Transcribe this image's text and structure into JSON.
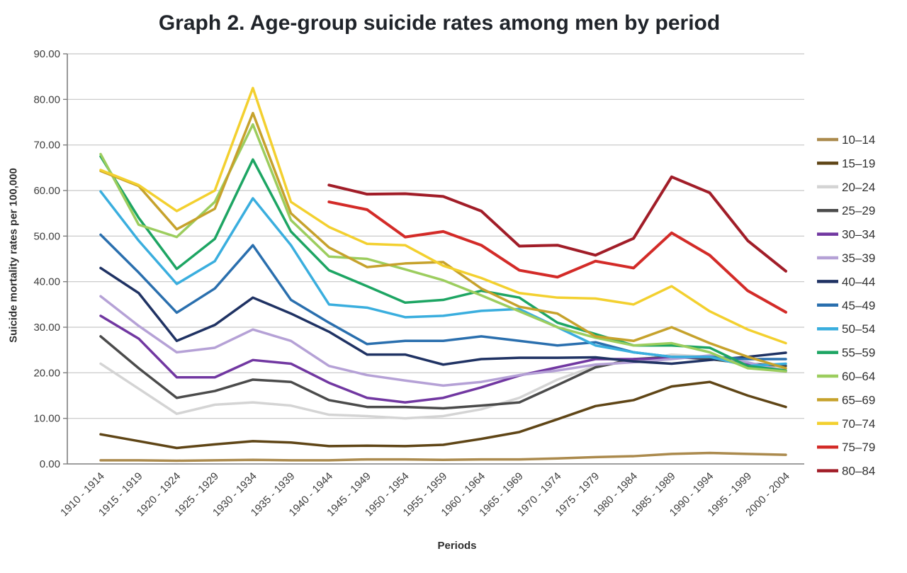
{
  "chart": {
    "title": "Graph 2. Age-group suicide rates among men by period",
    "xlabel": "Periods",
    "ylabel": "Suicide mortality rates per 100,000"
  },
  "chart_data": {
    "type": "line",
    "title": "Graph 2. Age-group suicide rates among men by period",
    "xlabel": "Periods",
    "ylabel": "Suicide mortality rates per 100,000",
    "ylim": [
      0,
      90
    ],
    "ytick_step": 10,
    "ytick_decimals": 2,
    "grid": "horizontal",
    "legend_position": "right",
    "axis_color": "#7f7f7f",
    "grid_color": "#c6c6c6",
    "tick_label_color": "#3d3d3d",
    "legend_label_color": "#303030",
    "categories": [
      "1910 - 1914",
      "1915 - 1919",
      "1920 - 1924",
      "1925 - 1929",
      "1930 - 1934",
      "1935 - 1939",
      "1940 - 1944",
      "1945 - 1949",
      "1950 - 1954",
      "1955 - 1959",
      "1960 - 1964",
      "1965 - 1969",
      "1970 - 1974",
      "1975 - 1979",
      "1980 - 1984",
      "1985 - 1989",
      "1990 - 1994",
      "1995 - 1999",
      "2000 - 2004"
    ],
    "series": [
      {
        "name": "10–14",
        "color": "#ab8a4d",
        "width": 3.5,
        "values": [
          0.8,
          0.8,
          0.7,
          0.8,
          0.9,
          0.8,
          0.8,
          1.0,
          1.0,
          0.9,
          1.0,
          1.0,
          1.2,
          1.5,
          1.7,
          2.2,
          2.4,
          2.2,
          2.0
        ]
      },
      {
        "name": "15–19",
        "color": "#5f4516",
        "width": 3.5,
        "values": [
          6.5,
          5.0,
          3.5,
          4.3,
          5.0,
          4.7,
          3.9,
          4.0,
          3.9,
          4.2,
          5.5,
          7.0,
          9.8,
          12.7,
          14.0,
          17.0,
          18.0,
          15.0,
          12.5
        ]
      },
      {
        "name": "20–24",
        "color": "#d4d4d4",
        "width": 3.5,
        "values": [
          22.0,
          16.5,
          11.0,
          13.0,
          13.5,
          12.8,
          10.8,
          10.5,
          10.0,
          10.5,
          12.0,
          14.5,
          18.5,
          21.5,
          22.5,
          24.0,
          23.5,
          21.5,
          21.0
        ]
      },
      {
        "name": "25–29",
        "color": "#4b4b4b",
        "width": 3.5,
        "values": [
          28.0,
          21.0,
          14.5,
          16.0,
          18.5,
          18.0,
          14.0,
          12.5,
          12.5,
          12.2,
          12.8,
          13.5,
          17.3,
          21.2,
          23.0,
          23.5,
          23.0,
          22.0,
          21.5
        ]
      },
      {
        "name": "30–34",
        "color": "#7137a1",
        "width": 3.5,
        "values": [
          32.5,
          27.5,
          19.0,
          19.0,
          22.8,
          22.0,
          17.8,
          14.5,
          13.5,
          14.5,
          16.8,
          19.4,
          21.2,
          23.0,
          23.0,
          23.2,
          23.5,
          22.0,
          20.3
        ]
      },
      {
        "name": "35–39",
        "color": "#b5a1d6",
        "width": 3.5,
        "values": [
          36.8,
          30.3,
          24.5,
          25.5,
          29.5,
          27.0,
          21.5,
          19.5,
          18.3,
          17.2,
          18.0,
          19.5,
          20.5,
          21.8,
          22.3,
          23.0,
          23.8,
          22.3,
          20.3
        ]
      },
      {
        "name": "40–44",
        "color": "#1f3263",
        "width": 3.5,
        "values": [
          43.0,
          37.5,
          27.0,
          30.5,
          36.5,
          33.0,
          29.0,
          24.0,
          24.0,
          21.8,
          23.0,
          23.3,
          23.3,
          23.4,
          22.5,
          22.0,
          22.8,
          23.5,
          24.4
        ]
      },
      {
        "name": "45–49",
        "color": "#2a6fae",
        "width": 3.5,
        "values": [
          50.3,
          42.0,
          33.2,
          38.5,
          48.0,
          36.0,
          31.0,
          26.3,
          27.0,
          27.0,
          28.0,
          27.0,
          26.0,
          26.7,
          24.5,
          23.5,
          23.5,
          23.0,
          23.0
        ]
      },
      {
        "name": "50–54",
        "color": "#3aaede",
        "width": 3.5,
        "values": [
          59.8,
          49.0,
          39.5,
          44.5,
          58.3,
          48.0,
          35.0,
          34.3,
          32.2,
          32.5,
          33.6,
          34.0,
          30.0,
          26.0,
          24.5,
          23.5,
          23.5,
          21.5,
          22.0
        ]
      },
      {
        "name": "55–59",
        "color": "#1da563",
        "width": 3.5,
        "values": [
          67.5,
          54.0,
          42.8,
          49.4,
          66.8,
          51.0,
          42.5,
          39.0,
          35.4,
          36.0,
          38.0,
          36.5,
          31.0,
          28.5,
          26.0,
          26.0,
          25.5,
          21.5,
          20.5
        ]
      },
      {
        "name": "60–64",
        "color": "#9ccd5e",
        "width": 3.5,
        "values": [
          68.0,
          52.5,
          49.8,
          57.5,
          74.5,
          53.5,
          45.5,
          45.0,
          42.7,
          40.3,
          37.0,
          33.5,
          30.0,
          27.7,
          26.0,
          26.5,
          24.5,
          21.0,
          20.3
        ]
      },
      {
        "name": "65–69",
        "color": "#c6a22c",
        "width": 3.5,
        "values": [
          64.3,
          61.0,
          51.5,
          56.0,
          77.0,
          55.0,
          47.5,
          43.2,
          44.0,
          44.3,
          38.5,
          34.5,
          33.0,
          28.0,
          27.0,
          30.0,
          26.5,
          23.5,
          21.0
        ]
      },
      {
        "name": "70–74",
        "color": "#f3d02f",
        "width": 3.5,
        "values": [
          64.5,
          61.2,
          55.5,
          60.0,
          82.5,
          57.5,
          52.0,
          48.3,
          48.0,
          43.5,
          40.8,
          37.5,
          36.5,
          36.3,
          35.0,
          39.0,
          33.5,
          29.5,
          26.5
        ]
      },
      {
        "name": "75–79",
        "color": "#d32b28",
        "width": 4,
        "values": [
          null,
          null,
          null,
          null,
          null,
          null,
          57.5,
          55.8,
          49.8,
          51.0,
          48.0,
          42.5,
          41.0,
          44.5,
          43.0,
          50.7,
          45.8,
          38.0,
          33.3
        ]
      },
      {
        "name": "80–84",
        "color": "#a11d28",
        "width": 4,
        "values": [
          null,
          null,
          null,
          null,
          null,
          null,
          61.2,
          59.2,
          59.3,
          58.7,
          55.5,
          47.8,
          48.0,
          45.8,
          49.5,
          63.0,
          59.5,
          49.0,
          42.3
        ]
      }
    ]
  }
}
